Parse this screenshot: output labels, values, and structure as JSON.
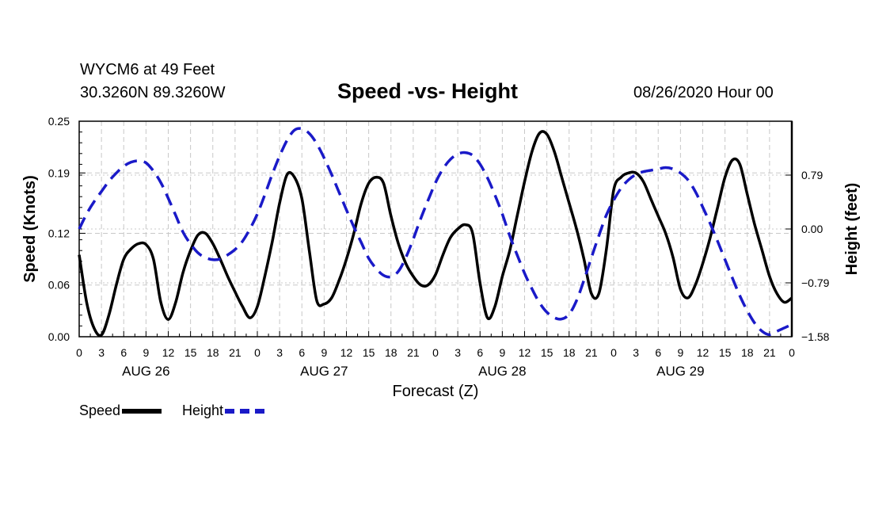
{
  "header": {
    "station": "WYCM6 at 49 Feet",
    "coords": "30.3260N 89.3260W",
    "title": "Speed -vs- Height",
    "issued": "08/26/2020 Hour 00"
  },
  "legend": {
    "speed_label": "Speed",
    "height_label": "Height"
  },
  "colors": {
    "speed": "#000000",
    "height": "#1a1ac8",
    "grid": "#c8c8c8"
  },
  "chart_data": {
    "type": "line",
    "title": "Speed -vs- Height",
    "xlabel": "Forecast (Z)",
    "ylabel": "Speed (Knots)",
    "y2label": "Height (feet)",
    "x_unit": "forecast hour",
    "xlim": [
      0,
      96
    ],
    "ylim": [
      0,
      0.25
    ],
    "y2lim": [
      -1.58,
      1.58
    ],
    "x_tick_labels": [
      "0",
      "3",
      "6",
      "9",
      "12",
      "15",
      "18",
      "21",
      "0",
      "3",
      "6",
      "9",
      "12",
      "15",
      "18",
      "21",
      "0",
      "3",
      "6",
      "9",
      "12",
      "15",
      "18",
      "21",
      "0",
      "3",
      "6",
      "9",
      "12",
      "15",
      "18",
      "21",
      "0"
    ],
    "date_labels": [
      {
        "label": "AUG 26",
        "hour": 9
      },
      {
        "label": "AUG 27",
        "hour": 33
      },
      {
        "label": "AUG 28",
        "hour": 57
      },
      {
        "label": "AUG 29",
        "hour": 81
      }
    ],
    "y_ticks": [
      {
        "value": 0.0,
        "label": "0.00"
      },
      {
        "value": 0.06,
        "label": "0.06"
      },
      {
        "value": 0.12,
        "label": "0.12"
      },
      {
        "value": 0.19,
        "label": "0.19"
      },
      {
        "value": 0.25,
        "label": "0.25"
      }
    ],
    "y2_ticks": [
      {
        "value": -1.58,
        "label": "-1.58"
      },
      {
        "value": -0.79,
        "label": "-0.79"
      },
      {
        "value": 0.0,
        "label": "0.00"
      },
      {
        "value": 0.79,
        "label": "0.79"
      }
    ],
    "grid": true,
    "series": [
      {
        "name": "Speed",
        "axis": "left",
        "style": "solid",
        "x": [
          0,
          1,
          2,
          3,
          4,
          5,
          6,
          7,
          8,
          9,
          10,
          11,
          12,
          13,
          14,
          15,
          16,
          17,
          18,
          19,
          20,
          21,
          22,
          23,
          24,
          25,
          26,
          27,
          28,
          29,
          30,
          31,
          32,
          33,
          34,
          35,
          36,
          37,
          38,
          39,
          40,
          41,
          42,
          43,
          44,
          45,
          46,
          47,
          48,
          49,
          50,
          51,
          52,
          53,
          54,
          55,
          56,
          57,
          58,
          59,
          60,
          61,
          62,
          63,
          64,
          65,
          66,
          67,
          68,
          69,
          70,
          71,
          72,
          73,
          74,
          75,
          76,
          77,
          78,
          79,
          80,
          81,
          82,
          83,
          84,
          85,
          86,
          87,
          88,
          89,
          90,
          91,
          92,
          93,
          94,
          95,
          96
        ],
        "values": [
          0.095,
          0.04,
          0.01,
          0.002,
          0.025,
          0.06,
          0.09,
          0.102,
          0.108,
          0.107,
          0.09,
          0.04,
          0.02,
          0.04,
          0.075,
          0.1,
          0.118,
          0.12,
          0.108,
          0.09,
          0.07,
          0.052,
          0.035,
          0.022,
          0.035,
          0.07,
          0.11,
          0.155,
          0.188,
          0.185,
          0.16,
          0.1,
          0.042,
          0.038,
          0.045,
          0.065,
          0.09,
          0.12,
          0.155,
          0.178,
          0.185,
          0.178,
          0.14,
          0.108,
          0.085,
          0.07,
          0.06,
          0.06,
          0.072,
          0.095,
          0.115,
          0.125,
          0.13,
          0.12,
          0.062,
          0.022,
          0.035,
          0.07,
          0.1,
          0.14,
          0.18,
          0.215,
          0.236,
          0.235,
          0.215,
          0.185,
          0.155,
          0.125,
          0.09,
          0.05,
          0.05,
          0.1,
          0.17,
          0.185,
          0.19,
          0.19,
          0.18,
          0.16,
          0.14,
          0.12,
          0.092,
          0.055,
          0.045,
          0.06,
          0.085,
          0.115,
          0.15,
          0.185,
          0.205,
          0.2,
          0.165,
          0.13,
          0.1,
          0.07,
          0.05,
          0.04,
          0.045
        ]
      },
      {
        "name": "Height",
        "axis": "right",
        "style": "dashed",
        "x": [
          0,
          1,
          2,
          3,
          4,
          5,
          6,
          7,
          8,
          9,
          10,
          11,
          12,
          13,
          14,
          15,
          16,
          17,
          18,
          19,
          20,
          21,
          22,
          23,
          24,
          25,
          26,
          27,
          28,
          29,
          30,
          31,
          32,
          33,
          34,
          35,
          36,
          37,
          38,
          39,
          40,
          41,
          42,
          43,
          44,
          45,
          46,
          47,
          48,
          49,
          50,
          51,
          52,
          53,
          54,
          55,
          56,
          57,
          58,
          59,
          60,
          61,
          62,
          63,
          64,
          65,
          66,
          67,
          68,
          69,
          70,
          71,
          72,
          73,
          74,
          75,
          76,
          77,
          78,
          79,
          80,
          81,
          82,
          83,
          84,
          85,
          86,
          87,
          88,
          89,
          90,
          91,
          92,
          93,
          94,
          95,
          96
        ],
        "values": [
          0.0,
          0.22,
          0.4,
          0.55,
          0.7,
          0.82,
          0.92,
          0.98,
          1.0,
          0.97,
          0.85,
          0.68,
          0.45,
          0.2,
          -0.05,
          -0.22,
          -0.35,
          -0.42,
          -0.45,
          -0.44,
          -0.38,
          -0.3,
          -0.18,
          0.0,
          0.22,
          0.5,
          0.8,
          1.07,
          1.3,
          1.45,
          1.47,
          1.4,
          1.25,
          1.04,
          0.8,
          0.54,
          0.28,
          0.03,
          -0.2,
          -0.43,
          -0.58,
          -0.68,
          -0.7,
          -0.62,
          -0.42,
          -0.15,
          0.15,
          0.42,
          0.68,
          0.88,
          1.02,
          1.1,
          1.12,
          1.08,
          0.95,
          0.75,
          0.5,
          0.22,
          -0.1,
          -0.38,
          -0.65,
          -0.88,
          -1.08,
          -1.22,
          -1.3,
          -1.32,
          -1.25,
          -1.05,
          -0.75,
          -0.42,
          -0.1,
          0.2,
          0.42,
          0.6,
          0.72,
          0.8,
          0.84,
          0.86,
          0.88,
          0.9,
          0.88,
          0.82,
          0.72,
          0.55,
          0.32,
          0.08,
          -0.18,
          -0.45,
          -0.72,
          -0.98,
          -1.2,
          -1.38,
          -1.5,
          -1.55,
          -1.5,
          -1.45,
          -1.4
        ]
      }
    ]
  }
}
